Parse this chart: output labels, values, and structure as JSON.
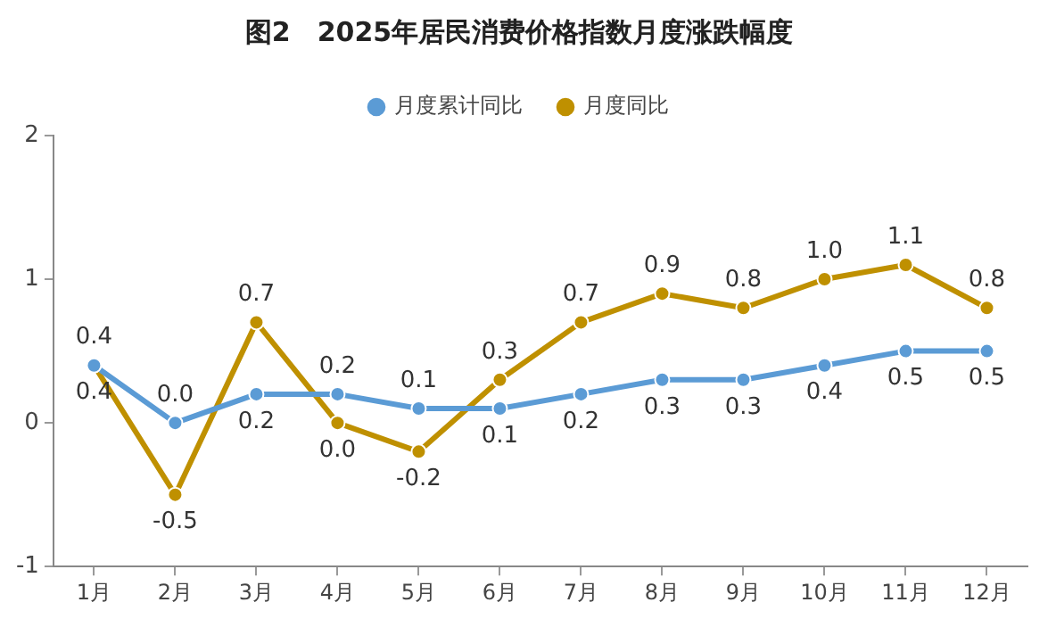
{
  "chart_data": {
    "type": "line",
    "title": "图2　2025年居民消费价格指数月度涨跌幅度",
    "categories": [
      "1月",
      "2月",
      "3月",
      "4月",
      "5月",
      "6月",
      "7月",
      "8月",
      "9月",
      "10月",
      "11月",
      "12月"
    ],
    "series": [
      {
        "name": "月度累计同比",
        "color": "#5b9bd5",
        "values": [
          0.4,
          0.0,
          0.2,
          0.2,
          0.1,
          0.1,
          0.2,
          0.3,
          0.3,
          0.4,
          0.5,
          0.5
        ],
        "value_labels": [
          "0.4",
          "0.0",
          "0.2",
          "0.2",
          "0.1",
          "0.1",
          "0.2",
          "0.3",
          "0.3",
          "0.4",
          "0.5",
          "0.5"
        ]
      },
      {
        "name": "月度同比",
        "color": "#bf9000",
        "values": [
          0.4,
          -0.5,
          0.7,
          0.0,
          -0.2,
          0.3,
          0.7,
          0.9,
          0.8,
          1.0,
          1.1,
          0.8
        ],
        "value_labels": [
          "0.4",
          "-0.5",
          "0.7",
          "0.0",
          "-0.2",
          "0.3",
          "0.7",
          "0.9",
          "0.8",
          "1.0",
          "1.1",
          "0.8"
        ]
      }
    ],
    "ylim": [
      -1,
      2
    ],
    "yticks": [
      -1,
      0,
      1,
      2
    ],
    "grid": false,
    "legend": "top",
    "marker": "circle",
    "line_style": "solid"
  }
}
